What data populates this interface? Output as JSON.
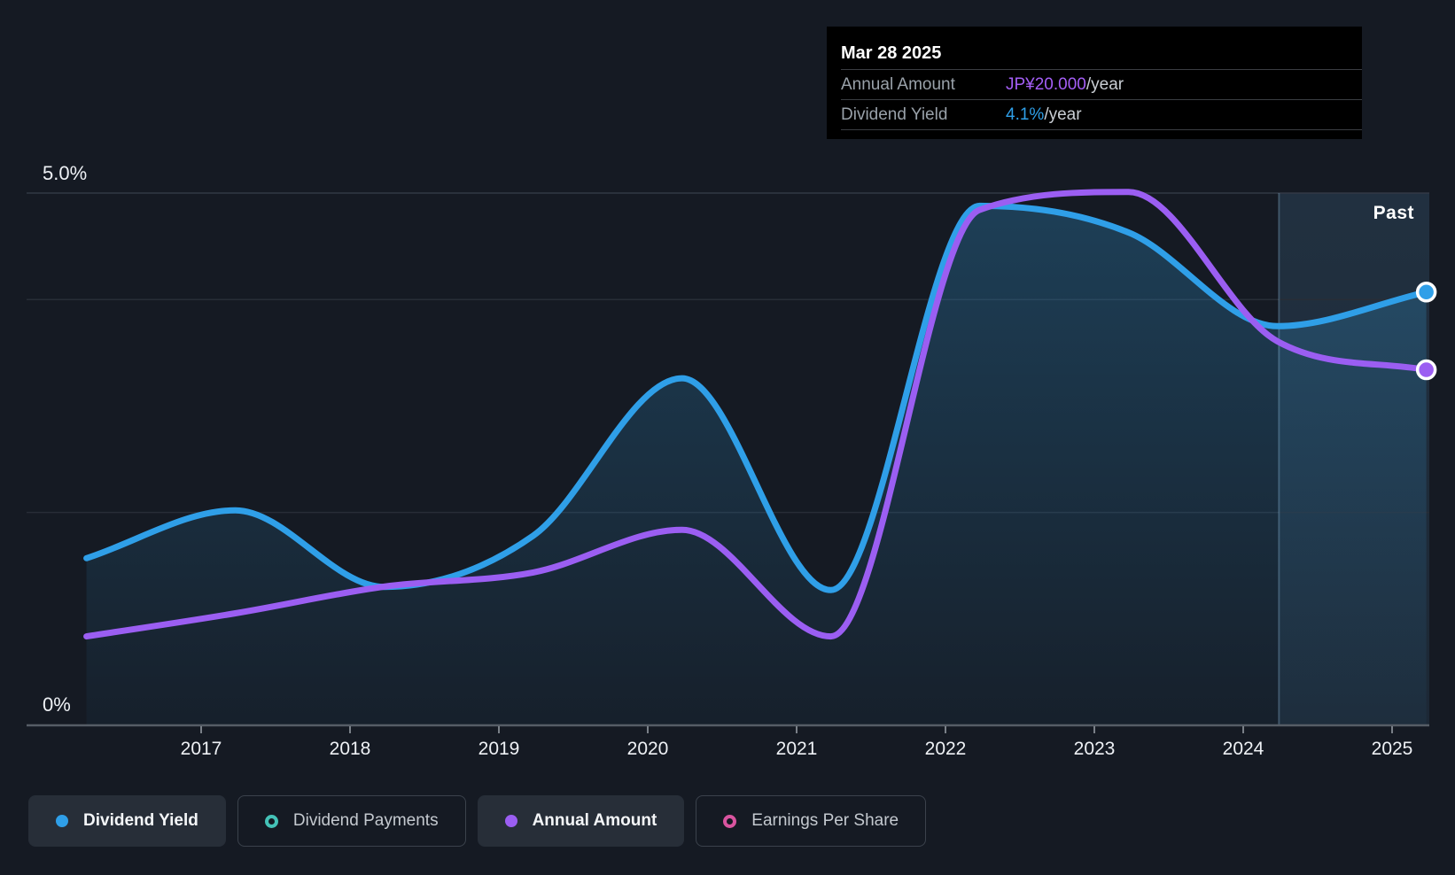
{
  "tooltip": {
    "date": "Mar 28 2025",
    "rows": [
      {
        "label": "Annual Amount",
        "value": "JP¥20.000",
        "suffix": "/year",
        "color": "#a45ef5"
      },
      {
        "label": "Dividend Yield",
        "value": "4.1%",
        "suffix": "/year",
        "color": "#2f9fe8"
      }
    ]
  },
  "axis": {
    "y_top_label": "5.0%",
    "y_bottom_label": "0%",
    "x_tick_years": [
      2017,
      2018,
      2019,
      2020,
      2021,
      2022,
      2023,
      2024,
      2025
    ]
  },
  "past_label": "Past",
  "legend": {
    "items": [
      {
        "label": "Dividend Yield",
        "color": "#2f9fe8",
        "style": "filled",
        "active": true
      },
      {
        "label": "Dividend Payments",
        "color": "#44c2b7",
        "style": "ring",
        "active": false
      },
      {
        "label": "Annual Amount",
        "color": "#9b5ef2",
        "style": "filled",
        "active": true
      },
      {
        "label": "Earnings Per Share",
        "color": "#d9549f",
        "style": "ring",
        "active": false
      }
    ]
  },
  "colors": {
    "background": "#151a23",
    "tooltip_bg": "#000000",
    "yield_line": "#2f9fe8",
    "amount_line": "#9b5ef2",
    "gridline": "#272d37",
    "gridline_top": "#323945",
    "axis_line": "#565d66",
    "tick": "#7a8088",
    "axis_text": "#eef1f5",
    "area_fill_rgb": "47,140,195",
    "past_tint_rgb": "96,165,215",
    "divider": "rgba(150,195,230,0.30)"
  },
  "chart_data": {
    "type": "area",
    "title": "Dividend history",
    "x_unit": "year (fiscal, ~Mar)",
    "xlim": [
      2016.1,
      2025.35
    ],
    "ylim_percent": [
      0,
      5.2
    ],
    "grid": "horizontal-partial",
    "gridlines_percent": [
      5.0,
      4.0,
      2.0
    ],
    "legend_position": "bottom",
    "past_region_start_year": 2024.24,
    "x_ticks": [
      2017,
      2018,
      2019,
      2020,
      2021,
      2022,
      2023,
      2024,
      2025
    ],
    "series": [
      {
        "name": "Dividend Yield",
        "unit": "%",
        "color": "#2f9fe8",
        "area_fill": true,
        "points": [
          {
            "x": 2016.23,
            "y": 1.57
          },
          {
            "x": 2017.23,
            "y": 2.02
          },
          {
            "x": 2018.23,
            "y": 1.3
          },
          {
            "x": 2019.23,
            "y": 1.78
          },
          {
            "x": 2020.23,
            "y": 3.26
          },
          {
            "x": 2021.23,
            "y": 1.27
          },
          {
            "x": 2022.23,
            "y": 4.88
          },
          {
            "x": 2023.23,
            "y": 4.63
          },
          {
            "x": 2024.23,
            "y": 3.75
          },
          {
            "x": 2025.23,
            "y": 4.07
          }
        ]
      },
      {
        "name": "Annual Amount",
        "unit": "JP¥/year",
        "color": "#9b5ef2",
        "area_fill": false,
        "percent_equivalent_per_jpy": 0.167,
        "points": [
          {
            "x": 2016.23,
            "y": 5.0
          },
          {
            "x": 2017.23,
            "y": 6.3
          },
          {
            "x": 2018.23,
            "y": 7.8
          },
          {
            "x": 2019.23,
            "y": 8.6
          },
          {
            "x": 2020.23,
            "y": 11.0
          },
          {
            "x": 2021.23,
            "y": 5.0
          },
          {
            "x": 2022.23,
            "y": 29.0
          },
          {
            "x": 2023.23,
            "y": 30.0
          },
          {
            "x": 2024.23,
            "y": 21.6
          },
          {
            "x": 2025.23,
            "y": 20.0
          }
        ]
      }
    ]
  }
}
